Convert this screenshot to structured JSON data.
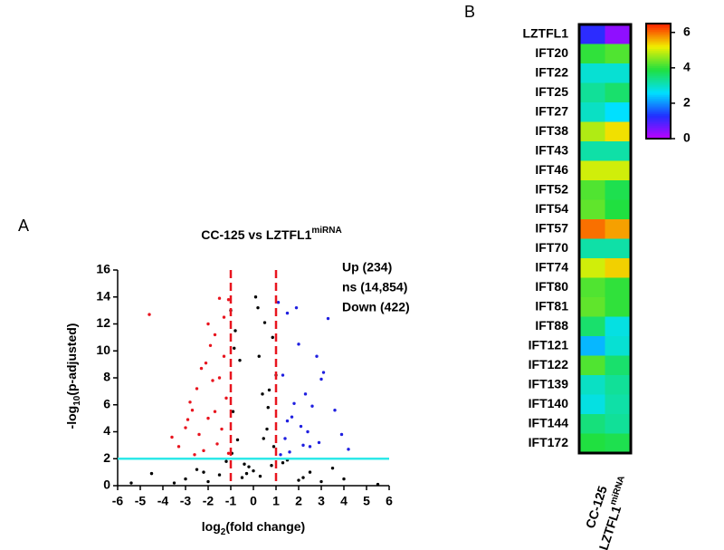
{
  "chart_data": [
    {
      "type": "scatter",
      "panel": "A",
      "title": "CC-125 vs LZTFL1",
      "title_sup": "miRNA",
      "x_label": "log",
      "x_label_sub": "2",
      "x_label_rest": "(fold change)",
      "y_label": "-log",
      "y_label_sub": "10",
      "y_label_rest": "(p-adjusted)",
      "xlim": [
        -6,
        6
      ],
      "xticks": [
        -6,
        -5,
        -4,
        -3,
        -2,
        -1,
        0,
        1,
        2,
        3,
        4,
        5,
        6
      ],
      "ylim": [
        0,
        16
      ],
      "yticks": [
        0,
        2,
        4,
        6,
        8,
        10,
        12,
        14,
        16
      ],
      "vlines": [
        -1,
        1
      ],
      "vline_color": "#e8141e",
      "hline": 2,
      "hline_color": "#2ee8e8",
      "series": [
        {
          "name": "Up (234)",
          "color": "#1f1fe0",
          "x": [
            1.2,
            1.4,
            1.5,
            1.7,
            1.9,
            2.1,
            2.3,
            2.5,
            2.8,
            3.0,
            3.3,
            3.6,
            3.9,
            4.2,
            1.3,
            1.6,
            2.0,
            2.4,
            2.9,
            1.1,
            1.8,
            2.2,
            3.1,
            1.5,
            2.6
          ],
          "y": [
            2.3,
            3.5,
            12.8,
            5.1,
            13.2,
            4.4,
            6.8,
            2.9,
            9.6,
            7.9,
            12.4,
            5.6,
            3.8,
            2.7,
            8.2,
            2.5,
            10.5,
            4.0,
            3.2,
            13.6,
            6.1,
            3.0,
            8.4,
            4.8,
            5.9
          ]
        },
        {
          "name": "ns (14,854)",
          "color": "#000000",
          "x": [
            -3.0,
            -2.5,
            -2.0,
            -1.5,
            -1.0,
            -0.8,
            -0.6,
            -0.5,
            -0.3,
            -0.2,
            0,
            0.2,
            0.3,
            0.5,
            0.6,
            0.8,
            1.0,
            1.5,
            2.0,
            2.5,
            3.0,
            -0.9,
            -0.7,
            0.4,
            0.7,
            0.9,
            -0.4,
            0.1,
            -1.2,
            1.3,
            -0.95,
            -0.85,
            0.25,
            0.45,
            0.65,
            0.85,
            -2.2,
            2.2,
            -4.5,
            4.0,
            3.5,
            -3.5,
            5.5,
            -5.4
          ],
          "y": [
            0.5,
            1.2,
            0.3,
            0.8,
            13.0,
            11.5,
            9.3,
            0.6,
            0.9,
            1.4,
            1.1,
            13.2,
            0.7,
            12.1,
            4.2,
            1.5,
            8.2,
            1.9,
            0.4,
            1.0,
            0.3,
            5.5,
            3.4,
            6.8,
            7.1,
            2.9,
            1.6,
            14.0,
            1.8,
            1.7,
            2.4,
            10.2,
            9.6,
            3.5,
            5.8,
            11.0,
            1.0,
            0.6,
            0.9,
            0.5,
            1.3,
            0.2,
            0.1,
            0.2
          ]
        },
        {
          "name": "Down (422)",
          "color": "#e8141e",
          "x": [
            -1.1,
            -1.3,
            -1.5,
            -1.7,
            -1.9,
            -2.1,
            -2.3,
            -2.5,
            -2.7,
            -3.0,
            -3.3,
            -3.6,
            -4.6,
            -1.2,
            -1.4,
            -1.6,
            -1.8,
            -2.0,
            -2.2,
            -2.4,
            -2.6,
            -2.9,
            -1.1,
            -1.3,
            -1.5,
            -2.0,
            -1.7,
            -2.8
          ],
          "y": [
            13.8,
            12.5,
            13.9,
            11.2,
            10.4,
            9.1,
            8.7,
            7.2,
            5.6,
            4.3,
            2.9,
            3.6,
            12.7,
            6.5,
            4.2,
            3.1,
            7.8,
            5.0,
            2.6,
            3.8,
            2.3,
            4.9,
            2.4,
            9.6,
            8.0,
            12.0,
            5.5,
            6.2
          ]
        }
      ]
    },
    {
      "type": "heatmap",
      "panel": "B",
      "rows": [
        "LZTFL1",
        "IFT20",
        "IFT22",
        "IFT25",
        "IFT27",
        "IFT38",
        "IFT43",
        "IFT46",
        "IFT52",
        "IFT54",
        "IFT57",
        "IFT70",
        "IFT74",
        "IFT80",
        "IFT81",
        "IFT88",
        "IFT121",
        "IFT122",
        "IFT139",
        "IFT140",
        "IFT144",
        "IFT172"
      ],
      "columns": [
        "CC-125",
        "LZTFL1"
      ],
      "column_sup": "miRNA",
      "values": [
        [
          1.2,
          0.4
        ],
        [
          4.0,
          4.2
        ],
        [
          2.9,
          2.9
        ],
        [
          3.3,
          3.6
        ],
        [
          3.0,
          2.6
        ],
        [
          4.8,
          5.3
        ],
        [
          3.2,
          3.2
        ],
        [
          5.0,
          5.0
        ],
        [
          4.2,
          3.8
        ],
        [
          4.3,
          3.9
        ],
        [
          6.0,
          5.7
        ],
        [
          3.2,
          3.2
        ],
        [
          5.0,
          5.4
        ],
        [
          4.2,
          4.0
        ],
        [
          4.3,
          4.0
        ],
        [
          3.6,
          2.8
        ],
        [
          2.3,
          2.9
        ],
        [
          4.2,
          3.6
        ],
        [
          3.0,
          3.3
        ],
        [
          2.8,
          3.2
        ],
        [
          3.5,
          3.3
        ],
        [
          3.9,
          3.8
        ]
      ],
      "clim": [
        0,
        6.5
      ],
      "cticks": [
        0,
        2,
        4,
        6
      ],
      "colorscale": [
        "#c000ff",
        "#2030ff",
        "#00e0ff",
        "#20e040",
        "#f0f000",
        "#ff2000"
      ]
    }
  ]
}
